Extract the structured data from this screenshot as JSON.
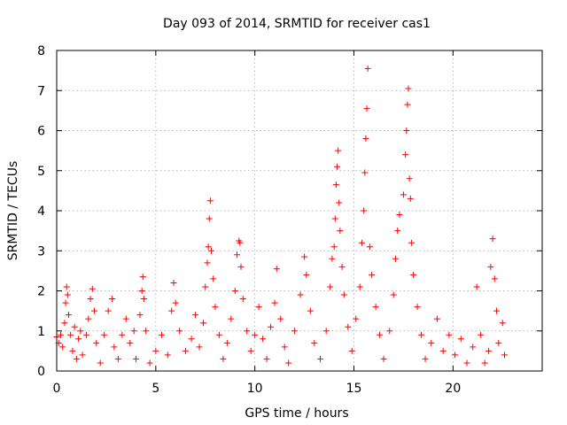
{
  "chart_data": {
    "type": "scatter",
    "title": "Day 093 of 2014, SRMTID for receiver cas1",
    "xlabel": "GPS time / hours",
    "ylabel": "SRMTID / TECUs",
    "xlim": [
      0,
      24.5
    ],
    "ylim": [
      0,
      8
    ],
    "xticks": [
      "0",
      "5",
      "10",
      "15",
      "20"
    ],
    "yticks": [
      "0",
      "1",
      "2",
      "3",
      "4",
      "5",
      "6",
      "7",
      "8"
    ],
    "grid": true,
    "marker": "plus",
    "color": "#ff0000",
    "series": [
      {
        "name": "SRMTID",
        "points": [
          [
            0.0,
            0.85
          ],
          [
            0.1,
            0.7
          ],
          [
            0.2,
            0.9
          ],
          [
            0.3,
            0.6
          ],
          [
            0.4,
            1.2
          ],
          [
            0.45,
            1.7
          ],
          [
            0.5,
            2.1
          ],
          [
            0.55,
            1.9
          ],
          [
            0.6,
            1.4
          ],
          [
            0.7,
            0.9
          ],
          [
            0.8,
            0.5
          ],
          [
            0.9,
            1.1
          ],
          [
            1.0,
            0.3
          ],
          [
            1.1,
            0.8
          ],
          [
            1.2,
            1.0
          ],
          [
            1.3,
            0.4
          ],
          [
            1.5,
            0.9
          ],
          [
            1.6,
            1.3
          ],
          [
            1.7,
            1.8
          ],
          [
            1.8,
            2.05
          ],
          [
            1.9,
            1.5
          ],
          [
            2.0,
            0.7
          ],
          [
            2.2,
            0.2
          ],
          [
            2.4,
            0.9
          ],
          [
            2.6,
            1.5
          ],
          [
            2.8,
            1.8
          ],
          [
            2.9,
            0.6
          ],
          [
            3.1,
            0.3
          ],
          [
            3.3,
            0.9
          ],
          [
            3.5,
            1.3
          ],
          [
            3.7,
            0.7
          ],
          [
            3.9,
            1.0
          ],
          [
            4.0,
            0.3
          ],
          [
            4.2,
            1.4
          ],
          [
            4.3,
            2.0
          ],
          [
            4.35,
            2.35
          ],
          [
            4.4,
            1.8
          ],
          [
            4.5,
            1.0
          ],
          [
            4.7,
            0.2
          ],
          [
            5.0,
            0.5
          ],
          [
            5.3,
            0.9
          ],
          [
            5.6,
            0.4
          ],
          [
            5.8,
            1.5
          ],
          [
            5.9,
            2.2
          ],
          [
            6.0,
            1.7
          ],
          [
            6.2,
            1.0
          ],
          [
            6.5,
            0.5
          ],
          [
            6.8,
            0.8
          ],
          [
            7.0,
            1.4
          ],
          [
            7.2,
            0.6
          ],
          [
            7.4,
            1.2
          ],
          [
            7.5,
            2.1
          ],
          [
            7.6,
            2.7
          ],
          [
            7.65,
            3.1
          ],
          [
            7.7,
            3.8
          ],
          [
            7.75,
            4.25
          ],
          [
            7.8,
            3.0
          ],
          [
            7.9,
            2.3
          ],
          [
            8.0,
            1.6
          ],
          [
            8.2,
            0.9
          ],
          [
            8.4,
            0.3
          ],
          [
            8.6,
            0.7
          ],
          [
            8.8,
            1.3
          ],
          [
            9.0,
            2.0
          ],
          [
            9.1,
            2.9
          ],
          [
            9.2,
            3.25
          ],
          [
            9.25,
            3.2
          ],
          [
            9.3,
            2.6
          ],
          [
            9.4,
            1.8
          ],
          [
            9.6,
            1.0
          ],
          [
            9.8,
            0.5
          ],
          [
            10.0,
            0.9
          ],
          [
            10.2,
            1.6
          ],
          [
            10.4,
            0.8
          ],
          [
            10.6,
            0.3
          ],
          [
            10.8,
            1.1
          ],
          [
            11.0,
            1.7
          ],
          [
            11.1,
            2.55
          ],
          [
            11.3,
            1.3
          ],
          [
            11.5,
            0.6
          ],
          [
            11.7,
            0.2
          ],
          [
            12.0,
            1.0
          ],
          [
            12.3,
            1.9
          ],
          [
            12.5,
            2.85
          ],
          [
            12.6,
            2.4
          ],
          [
            12.8,
            1.5
          ],
          [
            13.0,
            0.7
          ],
          [
            13.3,
            0.3
          ],
          [
            13.6,
            1.0
          ],
          [
            13.8,
            2.1
          ],
          [
            13.9,
            2.8
          ],
          [
            14.0,
            3.1
          ],
          [
            14.05,
            3.8
          ],
          [
            14.1,
            4.65
          ],
          [
            14.15,
            5.1
          ],
          [
            14.2,
            5.5
          ],
          [
            14.25,
            4.2
          ],
          [
            14.3,
            3.5
          ],
          [
            14.4,
            2.6
          ],
          [
            14.5,
            1.9
          ],
          [
            14.7,
            1.1
          ],
          [
            14.9,
            0.5
          ],
          [
            15.1,
            1.3
          ],
          [
            15.3,
            2.1
          ],
          [
            15.4,
            3.2
          ],
          [
            15.5,
            4.0
          ],
          [
            15.55,
            4.95
          ],
          [
            15.6,
            5.8
          ],
          [
            15.65,
            6.55
          ],
          [
            15.7,
            7.55
          ],
          [
            15.8,
            3.1
          ],
          [
            15.9,
            2.4
          ],
          [
            16.1,
            1.6
          ],
          [
            16.3,
            0.9
          ],
          [
            16.5,
            0.3
          ],
          [
            16.8,
            1.0
          ],
          [
            17.0,
            1.9
          ],
          [
            17.1,
            2.8
          ],
          [
            17.2,
            3.5
          ],
          [
            17.3,
            3.9
          ],
          [
            17.5,
            4.4
          ],
          [
            17.6,
            5.4
          ],
          [
            17.65,
            6.0
          ],
          [
            17.7,
            6.65
          ],
          [
            17.75,
            7.05
          ],
          [
            17.8,
            4.8
          ],
          [
            17.85,
            4.3
          ],
          [
            17.9,
            3.2
          ],
          [
            18.0,
            2.4
          ],
          [
            18.2,
            1.6
          ],
          [
            18.4,
            0.9
          ],
          [
            18.6,
            0.3
          ],
          [
            18.9,
            0.7
          ],
          [
            19.2,
            1.3
          ],
          [
            19.5,
            0.5
          ],
          [
            19.8,
            0.9
          ],
          [
            20.1,
            0.4
          ],
          [
            20.4,
            0.8
          ],
          [
            20.7,
            0.2
          ],
          [
            21.0,
            0.6
          ],
          [
            21.2,
            2.1
          ],
          [
            21.4,
            0.9
          ],
          [
            21.6,
            0.2
          ],
          [
            21.8,
            0.5
          ],
          [
            21.9,
            2.6
          ],
          [
            22.0,
            3.3
          ],
          [
            22.1,
            2.3
          ],
          [
            22.2,
            1.5
          ],
          [
            22.3,
            0.7
          ],
          [
            22.5,
            1.2
          ],
          [
            22.6,
            0.4
          ]
        ]
      }
    ]
  }
}
